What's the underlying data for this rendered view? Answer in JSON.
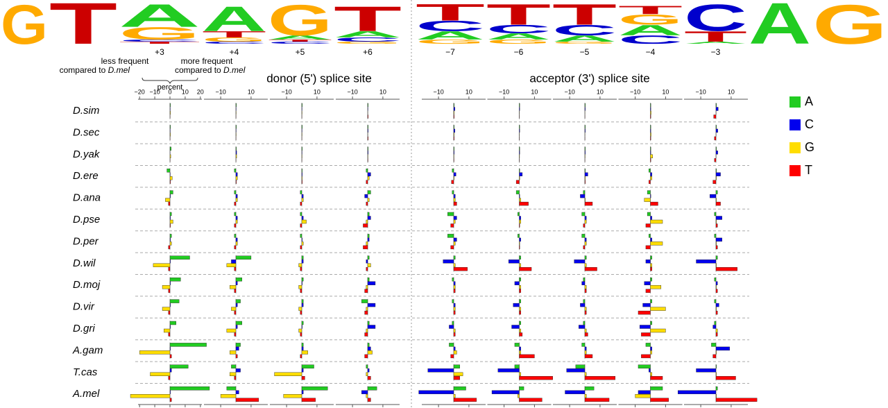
{
  "chart_data": {
    "type": "bar-grid",
    "title_donor": "donor (5') splice site",
    "title_acceptor": "acceptor (3') splice site",
    "annotations": {
      "less": "less frequent",
      "more": "more frequent",
      "compared": "compared to",
      "reference": "D.mel",
      "axis_label": "percent"
    },
    "xlim": [
      -21,
      21
    ],
    "xticks_first": [
      {
        "value": -20,
        "label": "−20"
      },
      {
        "value": -10,
        "label": "−10"
      },
      0,
      10,
      20
    ],
    "xticks": [
      {
        "value": -10,
        "label": "−10"
      },
      10
    ],
    "positions": [
      "+3",
      "+4",
      "+5",
      "+6",
      "−7",
      "−6",
      "−5",
      "−4",
      "−3"
    ],
    "species": [
      "D.sim",
      "D.sec",
      "D.yak",
      "D.ere",
      "D.ana",
      "D.pse",
      "D.per",
      "D.wil",
      "D.moj",
      "D.vir",
      "D.gri",
      "A.gam",
      "T.cas",
      "A.mel"
    ],
    "series": [
      {
        "name": "A",
        "color": "#22cc22",
        "values": [
          [
            0.3,
            0.3,
            0.3,
            0.3,
            0.3,
            0.3,
            0.3,
            0.3,
            0.3
          ],
          [
            0.3,
            0.3,
            0.3,
            0.3,
            0.3,
            0.3,
            0.3,
            0.3,
            0.3
          ],
          [
            0.8,
            0.3,
            0.3,
            0.3,
            0.3,
            0.3,
            0.3,
            0.3,
            0.3
          ],
          [
            -2,
            -1,
            0.3,
            -1,
            -1,
            0.3,
            0.3,
            -1,
            0.3
          ],
          [
            2,
            -1,
            -1,
            2,
            -1,
            -2,
            -1,
            -2,
            1
          ],
          [
            1,
            -1,
            -1,
            1,
            -4,
            -1,
            -2,
            -2,
            -1
          ],
          [
            1,
            -1,
            -1,
            1,
            -4,
            -1,
            -2,
            -1,
            -1
          ],
          [
            13,
            10,
            1,
            1,
            1,
            1,
            1,
            1,
            1
          ],
          [
            7,
            4,
            1,
            1,
            -1,
            1,
            -1,
            1,
            -1
          ],
          [
            6,
            3,
            1,
            -4,
            -1,
            1,
            -1,
            1,
            -1
          ],
          [
            4,
            4,
            1,
            1,
            -1,
            1,
            -1,
            1,
            -1
          ],
          [
            24,
            3,
            1,
            1,
            -3,
            -3,
            -2,
            -3,
            -3
          ],
          [
            12,
            -3,
            8,
            -1,
            4,
            -3,
            -6,
            -8,
            0.3
          ],
          [
            26,
            -6,
            17,
            6,
            8,
            3,
            6,
            8,
            1
          ]
        ]
      },
      {
        "name": "C",
        "color": "#0000ee",
        "values": [
          [
            0.2,
            0.2,
            0.2,
            0.2,
            0.8,
            0.3,
            0.3,
            0.3,
            1.5
          ],
          [
            0.2,
            0.2,
            0.2,
            0.3,
            0.8,
            0.3,
            0.3,
            0.3,
            1.2
          ],
          [
            0.1,
            0.5,
            0.2,
            0.3,
            0.3,
            0.3,
            0.3,
            0.3,
            1.2
          ],
          [
            0.2,
            1,
            0.3,
            2,
            1.5,
            2,
            2,
            1,
            3
          ],
          [
            0.3,
            1,
            1,
            -2,
            1,
            0.3,
            -3,
            0.3,
            -4
          ],
          [
            0.3,
            1,
            1,
            2,
            2,
            1,
            1,
            1,
            4
          ],
          [
            0.3,
            1,
            0.3,
            1,
            2,
            1,
            1,
            1,
            4
          ],
          [
            0.3,
            -3,
            1,
            -1,
            -7,
            -7,
            -7,
            -3,
            -13
          ],
          [
            0.3,
            1,
            0.3,
            5,
            1,
            -3,
            -2,
            -4,
            1
          ],
          [
            0.3,
            1,
            1,
            5,
            1,
            -4,
            -3,
            -5,
            2
          ],
          [
            0.3,
            1,
            0.3,
            5,
            -3,
            -5,
            -4,
            -7,
            -2
          ],
          [
            0.3,
            2,
            1,
            2,
            1,
            1,
            1,
            1,
            9
          ],
          [
            1,
            3,
            1,
            1,
            -17,
            -14,
            -12,
            -1,
            -13
          ],
          [
            0.3,
            2,
            1,
            -4,
            -23,
            -18,
            -13,
            -8,
            -25
          ]
        ]
      },
      {
        "name": "G",
        "color": "#ffdd00",
        "values": [
          [
            0.3,
            0.2,
            0.2,
            0.1,
            0.3,
            0.1,
            0.1,
            0.5,
            0.1
          ],
          [
            0.3,
            0.2,
            0.2,
            0.1,
            0.3,
            0.1,
            0.1,
            0.5,
            0.1
          ],
          [
            0.5,
            0.5,
            0.2,
            0.2,
            0.2,
            0.2,
            0.2,
            1.5,
            0.1
          ],
          [
            1.5,
            1,
            0.3,
            1,
            0.3,
            0.3,
            0.3,
            1,
            0.3
          ],
          [
            -3,
            1,
            1,
            1,
            1,
            1,
            0.3,
            -4,
            0.3
          ],
          [
            2,
            1,
            3,
            -1,
            1,
            1,
            1,
            8,
            0.3
          ],
          [
            1,
            1,
            1,
            -1,
            1,
            0.3,
            1,
            8,
            0.3
          ],
          [
            -11,
            -6,
            -2,
            2,
            1,
            1,
            1,
            1,
            0.3
          ],
          [
            -5,
            -4,
            -2,
            -1,
            1,
            1,
            1,
            7,
            0.3
          ],
          [
            -5,
            -3,
            -2,
            -1,
            1,
            1,
            1,
            10,
            0.3
          ],
          [
            -4,
            -6,
            -2,
            -1,
            1,
            1,
            1,
            10,
            1
          ],
          [
            -20,
            -4,
            4,
            3,
            2,
            1,
            1,
            1,
            0.3
          ],
          [
            -13,
            -4,
            -18,
            -1,
            6,
            1,
            1,
            1,
            0.3
          ],
          [
            -26,
            -10,
            -12,
            -1,
            1,
            -1,
            1,
            -10,
            0.3
          ]
        ]
      },
      {
        "name": "T",
        "color": "#ff0000",
        "values": [
          [
            0.1,
            0.1,
            0.1,
            0.3,
            0.3,
            0.1,
            0.1,
            0.3,
            -1.5
          ],
          [
            0.1,
            0.1,
            0.1,
            0.3,
            0.3,
            0.1,
            0.1,
            0.3,
            -1
          ],
          [
            0.1,
            0.1,
            0.1,
            0.2,
            0.2,
            0.1,
            0.1,
            0.3,
            -1
          ],
          [
            0.3,
            0.3,
            0.3,
            -1,
            -1.5,
            -2,
            0.3,
            -1,
            -2
          ],
          [
            -1,
            -1,
            -1,
            -1,
            2,
            6,
            5,
            5,
            3
          ],
          [
            0.3,
            -1,
            -1,
            -3,
            -2,
            0.3,
            -1,
            -3,
            1
          ],
          [
            -1,
            -1,
            -1,
            -3,
            -2,
            0.3,
            -1,
            -3,
            1
          ],
          [
            -1,
            -1,
            -1,
            -1,
            9,
            8,
            8,
            1,
            14
          ],
          [
            -1,
            -1,
            -1,
            -2,
            1,
            1,
            1,
            -3,
            1
          ],
          [
            -1,
            -1,
            -1,
            -2,
            1,
            1,
            1,
            -8,
            1
          ],
          [
            -1,
            -1,
            -1,
            -2,
            1,
            2,
            2,
            -6,
            1
          ],
          [
            1,
            1,
            -1,
            -2,
            -2,
            10,
            5,
            -6,
            -2
          ],
          [
            -1,
            -1,
            2,
            2,
            4,
            22,
            20,
            8,
            13
          ],
          [
            1,
            15,
            9,
            2,
            15,
            15,
            16,
            12,
            27
          ]
        ]
      }
    ],
    "logo": {
      "colors": {
        "A": "#22cc22",
        "C": "#0000cc",
        "G": "#ffaa00",
        "T": "#cc0000"
      },
      "columns": [
        {
          "label": null,
          "stack": [
            {
              "letter": "G",
              "height": 0.95
            }
          ]
        },
        {
          "label": null,
          "stack": [
            {
              "letter": "T",
              "height": 1
            }
          ]
        },
        {
          "label": "+3",
          "stack": [
            {
              "letter": "A",
              "height": 0.55
            },
            {
              "letter": "G",
              "height": 0.3
            },
            {
              "letter": "C",
              "height": 0.05
            },
            {
              "letter": "T",
              "height": 0.05
            }
          ]
        },
        {
          "label": "+4",
          "stack": [
            {
              "letter": "A",
              "height": 0.6
            },
            {
              "letter": "T",
              "height": 0.15
            },
            {
              "letter": "G",
              "height": 0.1
            },
            {
              "letter": "C",
              "height": 0.05
            }
          ]
        },
        {
          "label": "+5",
          "stack": [
            {
              "letter": "G",
              "height": 0.75
            },
            {
              "letter": "A",
              "height": 0.1
            },
            {
              "letter": "T",
              "height": 0.05
            },
            {
              "letter": "C",
              "height": 0.05
            }
          ]
        },
        {
          "label": "+6",
          "stack": [
            {
              "letter": "T",
              "height": 0.6
            },
            {
              "letter": "A",
              "height": 0.15
            },
            {
              "letter": "C",
              "height": 0.1
            },
            {
              "letter": "G",
              "height": 0.05
            }
          ]
        },
        {
          "label": "−7",
          "stack": [
            {
              "letter": "T",
              "height": 0.4
            },
            {
              "letter": "C",
              "height": 0.25
            },
            {
              "letter": "A",
              "height": 0.2
            },
            {
              "letter": "G",
              "height": 0.1
            }
          ]
        },
        {
          "label": "−6",
          "stack": [
            {
              "letter": "T",
              "height": 0.5
            },
            {
              "letter": "C",
              "height": 0.2
            },
            {
              "letter": "A",
              "height": 0.15
            },
            {
              "letter": "G",
              "height": 0.1
            }
          ]
        },
        {
          "label": "−5",
          "stack": [
            {
              "letter": "T",
              "height": 0.5
            },
            {
              "letter": "C",
              "height": 0.25
            },
            {
              "letter": "A",
              "height": 0.15
            },
            {
              "letter": "G",
              "height": 0.05
            }
          ]
        },
        {
          "label": "−4",
          "stack": [
            {
              "letter": "T",
              "height": 0.2
            },
            {
              "letter": "G",
              "height": 0.25
            },
            {
              "letter": "A",
              "height": 0.25
            },
            {
              "letter": "C",
              "height": 0.2
            }
          ]
        },
        {
          "label": "−3",
          "stack": [
            {
              "letter": "C",
              "height": 0.65
            },
            {
              "letter": "T",
              "height": 0.25
            },
            {
              "letter": "A",
              "height": 0.05
            }
          ]
        },
        {
          "label": null,
          "stack": [
            {
              "letter": "A",
              "height": 1
            }
          ]
        },
        {
          "label": null,
          "stack": [
            {
              "letter": "G",
              "height": 0.95
            }
          ]
        }
      ]
    }
  }
}
